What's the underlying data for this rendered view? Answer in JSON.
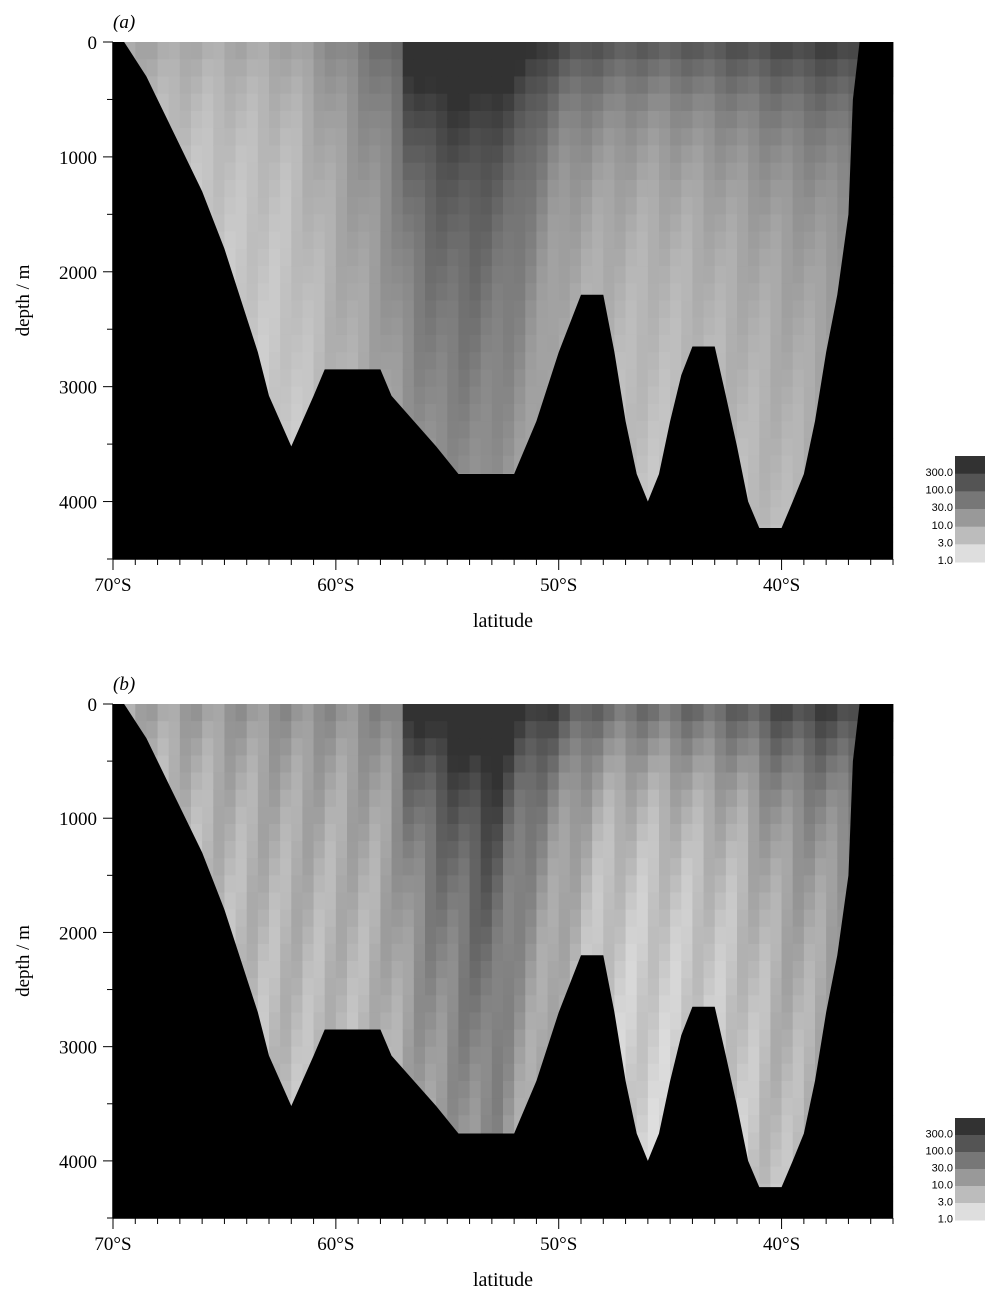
{
  "chart_data": [
    {
      "type": "heatmap",
      "panel_label": "(a)",
      "xlabel": "latitude",
      "ylabel": "depth / m",
      "x_ticks": [
        "70°S",
        "60°S",
        "50°S",
        "40°S"
      ],
      "x_tick_values": [
        -70,
        -60,
        -50,
        -40
      ],
      "y_ticks": [
        "0",
        "1000",
        "2000",
        "3000",
        "4000"
      ],
      "y_tick_values": [
        0,
        1000,
        2000,
        3000,
        4000
      ],
      "xlim": [
        -70,
        -35
      ],
      "ylim": [
        4500,
        0
      ],
      "legend_levels": [
        "300.0",
        "100.0",
        "30.0",
        "10.0",
        "3.0",
        "1.0"
      ],
      "legend_position": "right",
      "bathymetry": [
        [
          -69.5,
          0
        ],
        [
          -69,
          150
        ],
        [
          -68.5,
          300
        ],
        [
          -68,
          500
        ],
        [
          -67.5,
          700
        ],
        [
          -67,
          900
        ],
        [
          -66.5,
          1100
        ],
        [
          -66,
          1300
        ],
        [
          -65.5,
          1550
        ],
        [
          -65,
          1800
        ],
        [
          -64.5,
          2100
        ],
        [
          -64,
          2400
        ],
        [
          -63.5,
          2700
        ],
        [
          -63,
          3080
        ],
        [
          -62.5,
          3300
        ],
        [
          -62,
          3520
        ],
        [
          -61.5,
          3300
        ],
        [
          -61,
          3080
        ],
        [
          -60.5,
          2850
        ],
        [
          -58,
          2850
        ],
        [
          -57.5,
          3080
        ],
        [
          -56.5,
          3300
        ],
        [
          -55.5,
          3520
        ],
        [
          -54.5,
          3760
        ],
        [
          -52,
          3760
        ],
        [
          -51,
          3300
        ],
        [
          -50,
          2700
        ],
        [
          -49,
          2200
        ],
        [
          -48,
          2200
        ],
        [
          -47.5,
          2700
        ],
        [
          -47,
          3300
        ],
        [
          -46.5,
          3760
        ],
        [
          -46,
          4000
        ],
        [
          -45.5,
          3760
        ],
        [
          -45,
          3300
        ],
        [
          -44.5,
          2900
        ],
        [
          -44,
          2650
        ],
        [
          -43,
          2650
        ],
        [
          -42.5,
          3080
        ],
        [
          -42,
          3520
        ],
        [
          -41.5,
          4000
        ],
        [
          -41,
          4230
        ],
        [
          -40,
          4230
        ],
        [
          -39.5,
          4000
        ],
        [
          -39,
          3760
        ],
        [
          -38.5,
          3300
        ],
        [
          -38,
          2700
        ],
        [
          -37.5,
          2200
        ],
        [
          -37,
          1500
        ],
        [
          -36.8,
          500
        ],
        [
          -36.5,
          0
        ]
      ],
      "field_profile": [
        [
          -70,
          0.2
        ],
        [
          -66,
          0.15
        ],
        [
          -62,
          0.2
        ],
        [
          -60,
          0.35
        ],
        [
          -58,
          0.5
        ],
        [
          -56,
          0.75
        ],
        [
          -54,
          0.82
        ],
        [
          -52,
          0.7
        ],
        [
          -50,
          0.4
        ],
        [
          -48,
          0.32
        ],
        [
          -46,
          0.28
        ],
        [
          -44,
          0.3
        ],
        [
          -42,
          0.35
        ],
        [
          -40,
          0.4
        ],
        [
          -38,
          0.45
        ],
        [
          -35,
          0.45
        ]
      ],
      "surface_gain": 0.5,
      "eddy_amplitude": 0.04
    },
    {
      "type": "heatmap",
      "panel_label": "(b)",
      "xlabel": "latitude",
      "ylabel": "depth / m",
      "x_ticks": [
        "70°S",
        "60°S",
        "50°S",
        "40°S"
      ],
      "x_tick_values": [
        -70,
        -60,
        -50,
        -40
      ],
      "y_ticks": [
        "0",
        "1000",
        "2000",
        "3000",
        "4000"
      ],
      "y_tick_values": [
        0,
        1000,
        2000,
        3000,
        4000
      ],
      "xlim": [
        -70,
        -35
      ],
      "ylim": [
        4500,
        0
      ],
      "legend_levels": [
        "300.0",
        "100.0",
        "30.0",
        "10.0",
        "3.0",
        "1.0"
      ],
      "legend_position": "right",
      "bathymetry": [
        [
          -69.5,
          0
        ],
        [
          -69,
          150
        ],
        [
          -68.5,
          300
        ],
        [
          -68,
          500
        ],
        [
          -67.5,
          700
        ],
        [
          -67,
          900
        ],
        [
          -66.5,
          1100
        ],
        [
          -66,
          1300
        ],
        [
          -65.5,
          1550
        ],
        [
          -65,
          1800
        ],
        [
          -64.5,
          2100
        ],
        [
          -64,
          2400
        ],
        [
          -63.5,
          2700
        ],
        [
          -63,
          3080
        ],
        [
          -62.5,
          3300
        ],
        [
          -62,
          3520
        ],
        [
          -61.5,
          3300
        ],
        [
          -61,
          3080
        ],
        [
          -60.5,
          2850
        ],
        [
          -58,
          2850
        ],
        [
          -57.5,
          3080
        ],
        [
          -56.5,
          3300
        ],
        [
          -55.5,
          3520
        ],
        [
          -54.5,
          3760
        ],
        [
          -52,
          3760
        ],
        [
          -51,
          3300
        ],
        [
          -50,
          2700
        ],
        [
          -49,
          2200
        ],
        [
          -48,
          2200
        ],
        [
          -47.5,
          2700
        ],
        [
          -47,
          3300
        ],
        [
          -46.5,
          3760
        ],
        [
          -46,
          4000
        ],
        [
          -45.5,
          3760
        ],
        [
          -45,
          3300
        ],
        [
          -44.5,
          2900
        ],
        [
          -44,
          2650
        ],
        [
          -43,
          2650
        ],
        [
          -42.5,
          3080
        ],
        [
          -42,
          3520
        ],
        [
          -41.5,
          4000
        ],
        [
          -41,
          4230
        ],
        [
          -40,
          4230
        ],
        [
          -39.5,
          4000
        ],
        [
          -39,
          3760
        ],
        [
          -38.5,
          3300
        ],
        [
          -38,
          2700
        ],
        [
          -37.5,
          2200
        ],
        [
          -37,
          1500
        ],
        [
          -36.8,
          500
        ],
        [
          -36.5,
          0
        ]
      ],
      "field_profile": [
        [
          -70,
          0.15
        ],
        [
          -65,
          0.25
        ],
        [
          -62,
          0.3
        ],
        [
          -60,
          0.3
        ],
        [
          -58,
          0.35
        ],
        [
          -56,
          0.6
        ],
        [
          -54,
          0.75
        ],
        [
          -53,
          0.85
        ],
        [
          -52,
          0.6
        ],
        [
          -50,
          0.35
        ],
        [
          -48,
          0.15
        ],
        [
          -46,
          0.12
        ],
        [
          -44,
          0.15
        ],
        [
          -42,
          0.2
        ],
        [
          -40,
          0.35
        ],
        [
          -38,
          0.4
        ],
        [
          -35,
          0.4
        ]
      ],
      "surface_gain": 0.55,
      "eddy_amplitude": 0.08
    }
  ]
}
